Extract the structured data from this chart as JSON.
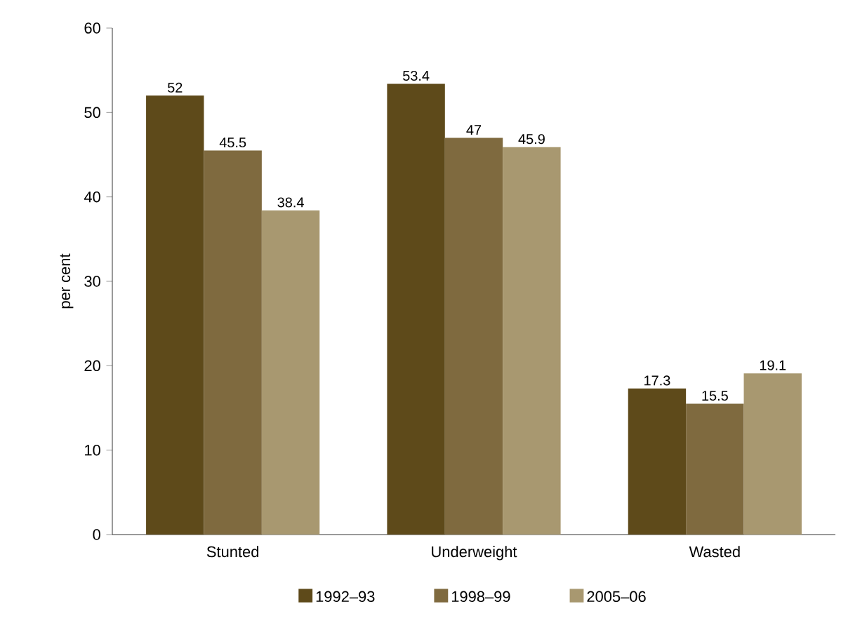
{
  "chart_data": {
    "type": "bar",
    "ylabel": "per cent",
    "categories": [
      "Stunted",
      "Underweight",
      "Wasted"
    ],
    "series": [
      {
        "name": "1992–93",
        "color": "#5e4a1a",
        "values": [
          52,
          53.4,
          17.3
        ]
      },
      {
        "name": "1998–99",
        "color": "#7f6a3f",
        "values": [
          45.5,
          47,
          15.5
        ]
      },
      {
        "name": "2005–06",
        "color": "#a89870",
        "values": [
          38.4,
          45.9,
          19.1
        ]
      }
    ],
    "ylim": [
      0,
      60
    ],
    "yticks": [
      0,
      10,
      20,
      30,
      40,
      50,
      60
    ],
    "data_labels": true,
    "grid": false,
    "legend": "bottom"
  }
}
